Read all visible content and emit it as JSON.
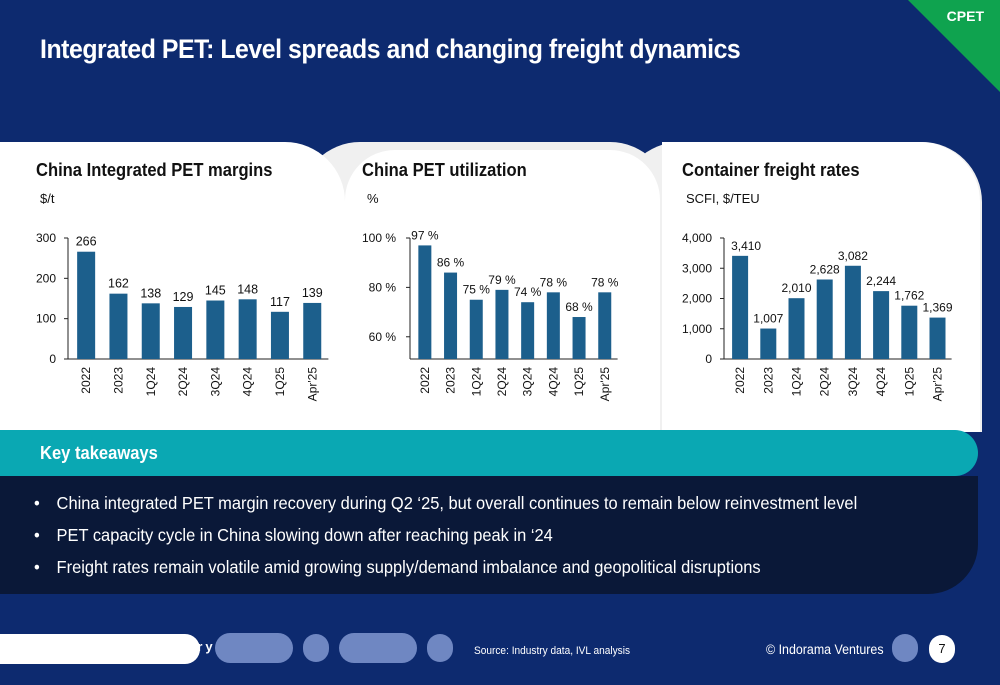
{
  "tag": "CPET",
  "title": "Integrated PET: Level spreads and changing freight dynamics",
  "colors": {
    "background": "#0d2a6f",
    "bar": "#1c5f8c",
    "teal": "#0aa8b3",
    "green": "#0fa34f",
    "dark": "#0a1838"
  },
  "chart_data": [
    {
      "type": "bar",
      "title": "China Integrated PET margins",
      "unit": "$/t",
      "categories": [
        "2022",
        "2023",
        "1Q24",
        "2Q24",
        "3Q24",
        "4Q24",
        "1Q25",
        "Apr'25"
      ],
      "values": [
        266,
        162,
        138,
        129,
        145,
        148,
        117,
        139
      ],
      "labels": [
        "266",
        "162",
        "138",
        "129",
        "145",
        "148",
        "117",
        "139"
      ],
      "ylim": [
        0,
        300
      ],
      "yticks": [
        "0",
        "100",
        "200",
        "300"
      ],
      "ytick_values": [
        0,
        100,
        200,
        300
      ]
    },
    {
      "type": "bar",
      "title": "China PET utilization",
      "unit": "%",
      "categories": [
        "2022",
        "2023",
        "1Q24",
        "2Q24",
        "3Q24",
        "4Q24",
        "1Q25",
        "Apr'25"
      ],
      "values": [
        97,
        86,
        75,
        79,
        74,
        78,
        68,
        78
      ],
      "labels": [
        "97 %",
        "86 %",
        "75 %",
        "79 %",
        "74 %",
        "78 %",
        "68 %",
        "78 %"
      ],
      "ylim": [
        51,
        100
      ],
      "yticks": [
        "60 %",
        "80 %",
        "100 %"
      ],
      "ytick_values": [
        60,
        80,
        100
      ]
    },
    {
      "type": "bar",
      "title": "Container freight rates",
      "unit": "SCFI, $/TEU",
      "categories": [
        "2022",
        "2023",
        "1Q24",
        "2Q24",
        "3Q24",
        "4Q24",
        "1Q25",
        "Apr'25"
      ],
      "values": [
        3410,
        1007,
        2010,
        2628,
        3082,
        2244,
        1762,
        1369
      ],
      "labels": [
        "3,410",
        "1,007",
        "2,010",
        "2,628",
        "3,082",
        "2,244",
        "1,762",
        "1,369"
      ],
      "ylim": [
        0,
        4000
      ],
      "yticks": [
        "0",
        "1,000",
        "2,000",
        "3,000",
        "4,000"
      ],
      "ytick_values": [
        0,
        1000,
        2000,
        3000,
        4000
      ]
    }
  ],
  "takeaways": {
    "title": "Key takeaways",
    "items": [
      "China integrated PET margin recovery during Q2 ‘25, but overall continues to remain below reinvestment level",
      "PET capacity cycle in China slowing down after reaching peak in ‘24",
      "Freight rates remain volatile amid growing supply/demand imbalance and geopolitical disruptions"
    ]
  },
  "footer": {
    "word": "try",
    "source": "Source: Industry data, IVL analysis",
    "copyright": "© Indorama Ventures",
    "page": "7"
  }
}
